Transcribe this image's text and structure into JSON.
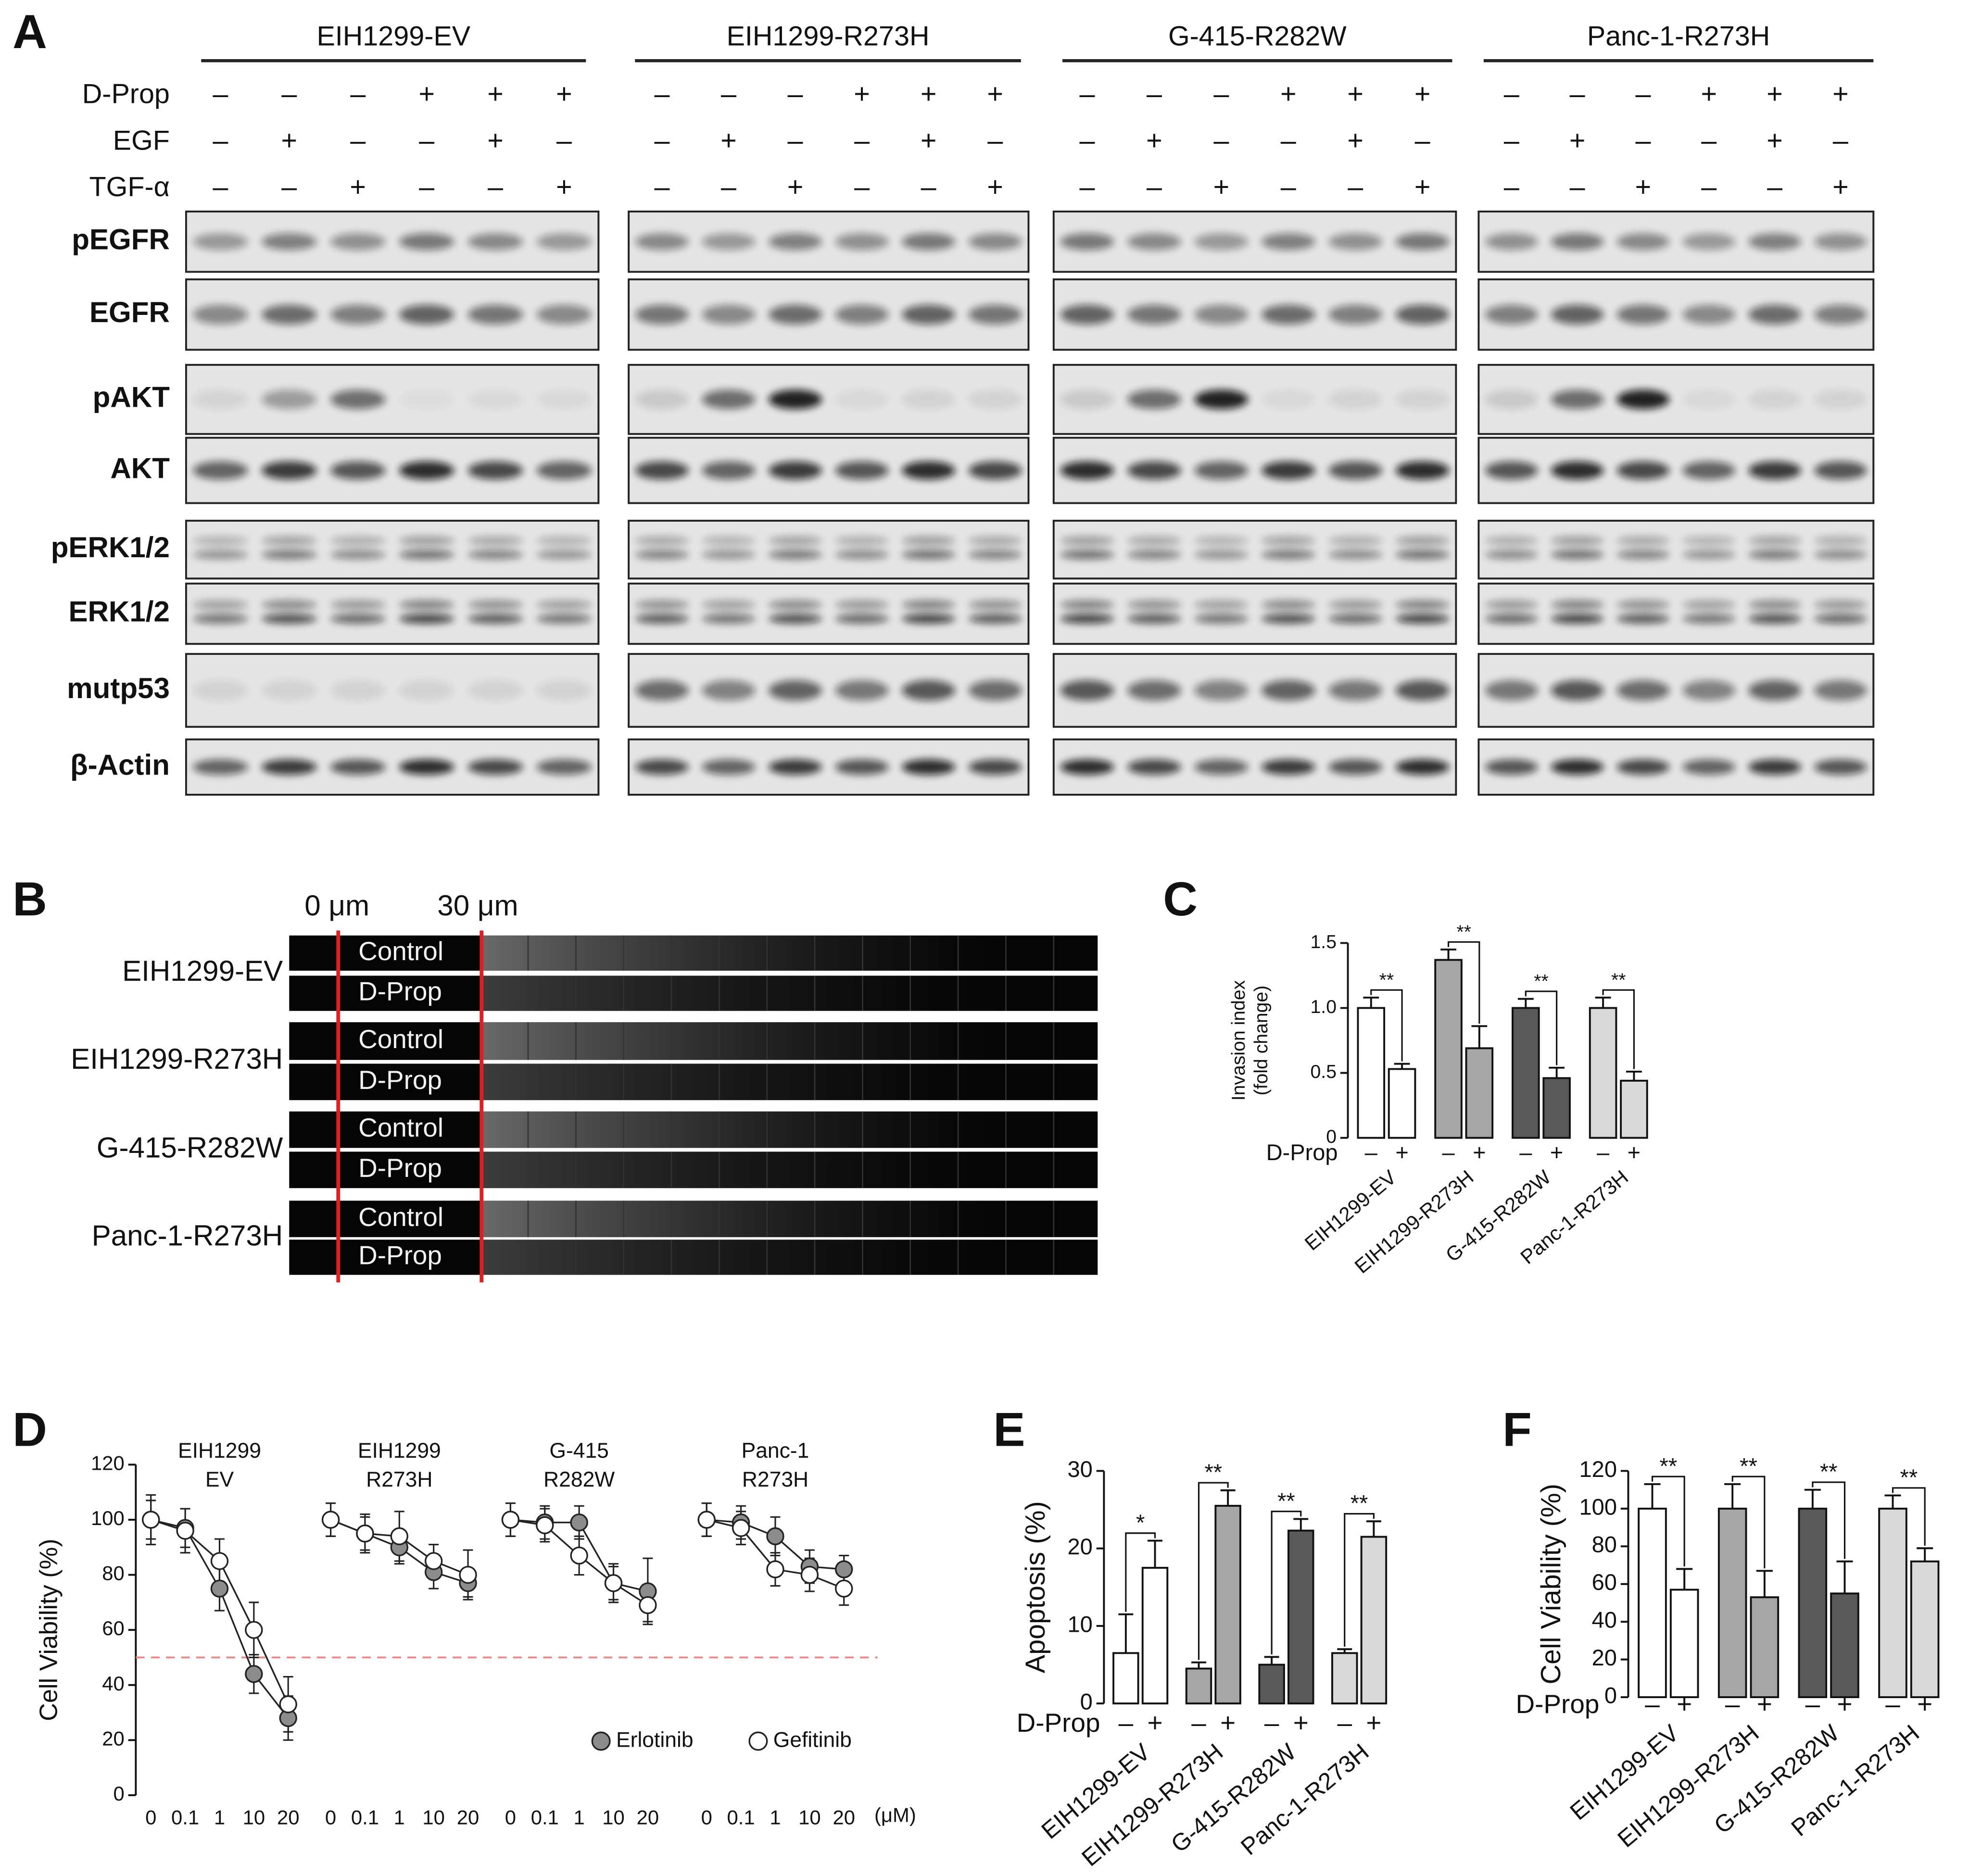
{
  "blot": {
    "panel": "A",
    "treatment_names": [
      "D-Prop",
      "EGF",
      "TGF-α"
    ],
    "groups": [
      {
        "name": "EIH1299-EV",
        "treatments": [
          [
            "–",
            "–",
            "–",
            "+",
            "+",
            "+"
          ],
          [
            "–",
            "+",
            "–",
            "–",
            "+",
            "–"
          ],
          [
            "–",
            "–",
            "+",
            "–",
            "–",
            "+"
          ]
        ]
      },
      {
        "name": "EIH1299-R273H",
        "treatments": [
          [
            "–",
            "–",
            "–",
            "+",
            "+",
            "+"
          ],
          [
            "–",
            "+",
            "–",
            "–",
            "+",
            "–"
          ],
          [
            "–",
            "–",
            "+",
            "–",
            "–",
            "+"
          ]
        ]
      },
      {
        "name": "G-415-R282W",
        "treatments": [
          [
            "–",
            "–",
            "–",
            "+",
            "+",
            "+"
          ],
          [
            "–",
            "+",
            "–",
            "–",
            "+",
            "–"
          ],
          [
            "–",
            "–",
            "+",
            "–",
            "–",
            "+"
          ]
        ]
      },
      {
        "name": "Panc-1-R273H",
        "treatments": [
          [
            "–",
            "–",
            "–",
            "+",
            "+",
            "+"
          ],
          [
            "–",
            "+",
            "–",
            "–",
            "+",
            "–"
          ],
          [
            "–",
            "–",
            "+",
            "–",
            "–",
            "+"
          ]
        ]
      }
    ],
    "proteins": [
      "pEGFR",
      "EGFR",
      "pAKT",
      "AKT",
      "pERK1/2",
      "ERK1/2",
      "mutp53",
      "β-Actin"
    ]
  },
  "migration": {
    "panel": "B",
    "scale_labels": [
      "0 μm",
      "30 μm"
    ],
    "rows": [
      {
        "name": "EIH1299-EV",
        "conditions": [
          "Control",
          "D-Prop"
        ]
      },
      {
        "name": "EIH1299-R273H",
        "conditions": [
          "Control",
          "D-Prop"
        ]
      },
      {
        "name": "G-415-R282W",
        "conditions": [
          "Control",
          "D-Prop"
        ]
      },
      {
        "name": "Panc-1-R273H",
        "conditions": [
          "Control",
          "D-Prop"
        ]
      }
    ]
  },
  "chart_data": [
    {
      "type": "bar",
      "panel": "C",
      "y_label": [
        "Invasion index",
        "(fold change)"
      ],
      "categories": [
        "EIH1299-EV",
        "EIH1299-R273H",
        "G-415-R282W",
        "Panc-1-R273H"
      ],
      "row_label": "D-Prop",
      "sign_labels": [
        [
          "–",
          "+"
        ],
        [
          "–",
          "+"
        ],
        [
          "–",
          "+"
        ],
        [
          "–",
          "+"
        ]
      ],
      "colors": [
        "#ffffff",
        "#a6a6a6",
        "#595959",
        "#d9d9d9"
      ],
      "series": [
        {
          "values": [
            1.0,
            1.37,
            1.0,
            1.0
          ],
          "errors": [
            0.08,
            0.08,
            0.07,
            0.08
          ]
        },
        {
          "values": [
            0.53,
            0.69,
            0.46,
            0.44
          ],
          "errors": [
            0.04,
            0.17,
            0.08,
            0.07
          ]
        }
      ],
      "annotations": [
        "**",
        "**",
        "**",
        "**"
      ],
      "ylim": [
        0,
        1.5
      ],
      "yticks": [
        0,
        0.5,
        {
          "value": 1,
          "label": "1.0"
        },
        1.5
      ]
    },
    {
      "type": "line",
      "panel": "D",
      "y_label": "Cell Viability (%)",
      "x_unit": "(μM)",
      "ylim": [
        0,
        120
      ],
      "yticks": [
        0,
        20,
        40,
        60,
        80,
        100,
        120
      ],
      "hline": 50,
      "hline_color": "#e88a8a",
      "legend": [
        {
          "name": "Erlotinib",
          "color": "#8c8c8c"
        },
        {
          "name": "Gefitinib",
          "color": "#ffffff"
        }
      ],
      "groups": [
        {
          "title": [
            "EIH1299",
            "EV"
          ],
          "categories": [
            "0",
            "0.1",
            "1",
            "10",
            "20"
          ],
          "series": [
            {
              "values": [
                100,
                97,
                75,
                44,
                28
              ],
              "errors": [
                7,
                7,
                8,
                7,
                8
              ]
            },
            {
              "values": [
                100,
                96,
                85,
                60,
                33
              ],
              "errors": [
                9,
                8,
                8,
                10,
                10
              ]
            }
          ]
        },
        {
          "title": [
            "EIH1299",
            "R273H"
          ],
          "categories": [
            "0",
            "0.1",
            "1",
            "10",
            "20"
          ],
          "series": [
            {
              "values": [
                100,
                95,
                90,
                81,
                77
              ],
              "errors": [
                6,
                6,
                6,
                6,
                5
              ]
            },
            {
              "values": [
                100,
                95,
                94,
                85,
                80
              ],
              "errors": [
                6,
                7,
                9,
                6,
                9
              ]
            }
          ]
        },
        {
          "title": [
            "G-415",
            "R282W"
          ],
          "categories": [
            "0",
            "0.1",
            "1",
            "10",
            "20"
          ],
          "series": [
            {
              "values": [
                100,
                99,
                99,
                77,
                74
              ],
              "errors": [
                6,
                6,
                6,
                6,
                12
              ]
            },
            {
              "values": [
                100,
                98,
                87,
                77,
                69
              ],
              "errors": [
                6,
                6,
                7,
                7,
                6
              ]
            }
          ]
        },
        {
          "title": [
            "Panc-1",
            "R273H"
          ],
          "categories": [
            "0",
            "0.1",
            "1",
            "10",
            "20"
          ],
          "series": [
            {
              "values": [
                100,
                99,
                94,
                83,
                82
              ],
              "errors": [
                6,
                6,
                7,
                6,
                5
              ]
            },
            {
              "values": [
                100,
                97,
                82,
                80,
                75
              ],
              "errors": [
                6,
                6,
                6,
                6,
                6
              ]
            }
          ]
        }
      ]
    },
    {
      "type": "bar",
      "panel": "E",
      "y_label": [
        "Apoptosis (%)"
      ],
      "categories": [
        "EIH1299-EV",
        "EIH1299-R273H",
        "G-415-R282W",
        "Panc-1-R273H"
      ],
      "row_label": "D-Prop",
      "sign_labels": [
        [
          "–",
          "+"
        ],
        [
          "–",
          "+"
        ],
        [
          "–",
          "+"
        ],
        [
          "–",
          "+"
        ]
      ],
      "colors": [
        "#ffffff",
        "#a6a6a6",
        "#595959",
        "#d9d9d9"
      ],
      "series": [
        {
          "values": [
            6.5,
            4.5,
            5,
            6.5
          ],
          "errors": [
            5,
            0.8,
            1,
            0.5
          ]
        },
        {
          "values": [
            17.5,
            25.5,
            22.3,
            21.5
          ],
          "errors": [
            3.5,
            2,
            1.5,
            2
          ]
        }
      ],
      "annotations": [
        "*",
        "**",
        "**",
        "**"
      ],
      "ylim": [
        0,
        30
      ],
      "yticks": [
        0,
        10,
        20,
        30
      ]
    },
    {
      "type": "bar",
      "panel": "F",
      "y_label": [
        "Cell Viability (%)"
      ],
      "categories": [
        "EIH1299-EV",
        "EIH1299-R273H",
        "G-415-R282W",
        "Panc-1-R273H"
      ],
      "row_label": "D-Prop",
      "sign_labels": [
        [
          "–",
          "+"
        ],
        [
          "–",
          "+"
        ],
        [
          "–",
          "+"
        ],
        [
          "–",
          "+"
        ]
      ],
      "colors": [
        "#ffffff",
        "#a6a6a6",
        "#595959",
        "#d9d9d9"
      ],
      "series": [
        {
          "values": [
            100,
            100,
            100,
            100
          ],
          "errors": [
            13,
            13,
            10,
            7
          ]
        },
        {
          "values": [
            57,
            53,
            55,
            72
          ],
          "errors": [
            11,
            14,
            17,
            7
          ]
        }
      ],
      "annotations": [
        "**",
        "**",
        "**",
        "**"
      ],
      "ylim": [
        0,
        120
      ],
      "yticks": [
        0,
        20,
        40,
        60,
        80,
        100,
        120
      ]
    }
  ]
}
